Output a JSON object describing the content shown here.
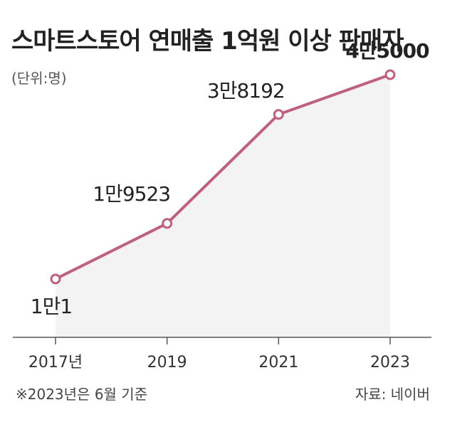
{
  "title": "스마트스토어 연매출 1억원 이상 판매자",
  "unit_note": "(단위:명)",
  "footnote": "※2023년은 6월 기준",
  "source": "자료: 네이버",
  "colors": {
    "line": "#c0607f",
    "area": "#f3f3f3",
    "marker_fill": "#ffffff",
    "axis": "#555555"
  },
  "chart_data": {
    "type": "area",
    "title": "스마트스토어 연매출 1억원 이상 판매자",
    "ylabel": "(단위:명)",
    "xlabel": "",
    "categories": [
      "2017년",
      "2019",
      "2021",
      "2023"
    ],
    "x": [
      2017,
      2019,
      2021,
      2023
    ],
    "values": [
      10001,
      19523,
      38192,
      45000
    ],
    "data_labels": [
      "1만1",
      "1만9523",
      "3만8192",
      "4만5000"
    ],
    "ylim": [
      0,
      50000
    ],
    "grid": false,
    "legend": "none"
  }
}
